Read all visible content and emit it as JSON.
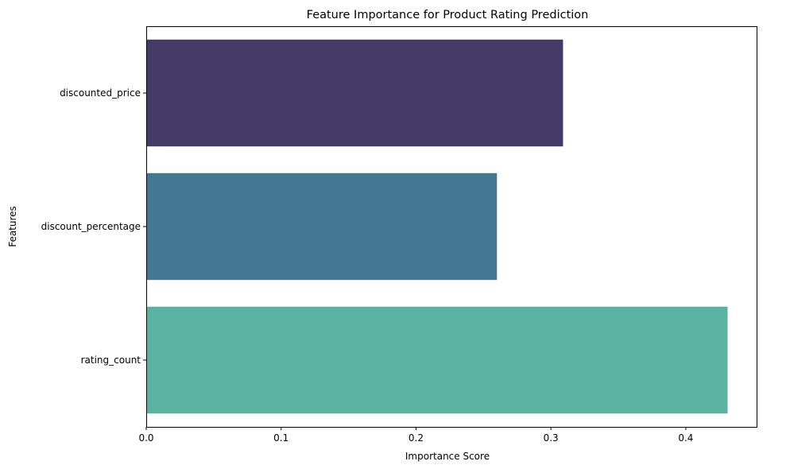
{
  "chart_data": {
    "type": "bar",
    "orientation": "horizontal",
    "title": "Feature Importance for Product Rating Prediction",
    "xlabel": "Importance Score",
    "ylabel": "Features",
    "categories": [
      "discounted_price",
      "discount_percentage",
      "rating_count"
    ],
    "values": [
      0.309,
      0.26,
      0.431
    ],
    "colors": [
      "#443a67",
      "#447794",
      "#59b2a2"
    ],
    "xlim": [
      0,
      0.4525
    ],
    "xticks": [
      0.0,
      0.1,
      0.2,
      0.3,
      0.4
    ],
    "xtick_labels": [
      "0.0",
      "0.1",
      "0.2",
      "0.3",
      "0.4"
    ],
    "grid": false,
    "legend": "none"
  }
}
